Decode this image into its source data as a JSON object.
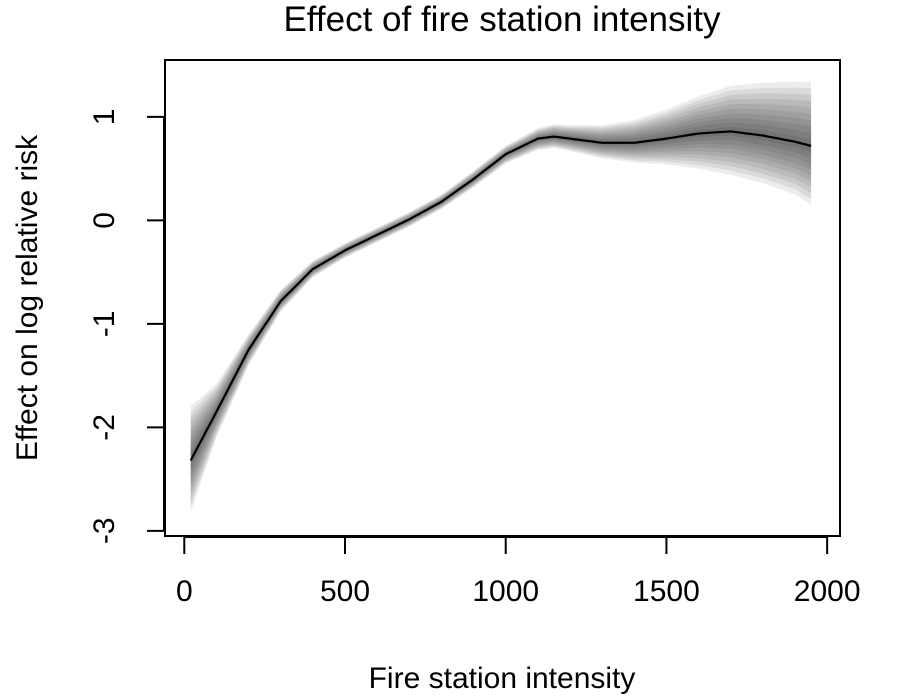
{
  "chart_data": {
    "type": "line",
    "title": "Effect of fire station intensity",
    "xlabel": "Fire station intensity",
    "ylabel": "Effect on log relative risk",
    "xlim": [
      -60,
      2040
    ],
    "ylim": [
      -3.05,
      1.55
    ],
    "x_ticks": [
      0,
      500,
      1000,
      1500,
      2000
    ],
    "y_ticks": [
      -3,
      -2,
      -1,
      0,
      1
    ],
    "y_tick_labels_rotated": true,
    "grid": false,
    "legend": "none",
    "colors": {
      "line": "#000000",
      "band": "#000000",
      "background": "#ffffff"
    },
    "series": [
      {
        "x": [
          20,
          100,
          200,
          300,
          400,
          500,
          600,
          700,
          800,
          900,
          1000,
          1100,
          1150,
          1200,
          1300,
          1400,
          1500,
          1600,
          1700,
          1800,
          1900,
          1950
        ],
        "values": [
          -2.32,
          -1.85,
          -1.25,
          -0.78,
          -0.47,
          -0.29,
          -0.14,
          0.01,
          0.18,
          0.4,
          0.64,
          0.79,
          0.81,
          0.79,
          0.75,
          0.75,
          0.79,
          0.84,
          0.86,
          0.82,
          0.76,
          0.72
        ],
        "lower": [
          -2.82,
          -2.1,
          -1.4,
          -0.88,
          -0.55,
          -0.36,
          -0.21,
          -0.06,
          0.11,
          0.32,
          0.55,
          0.68,
          0.7,
          0.67,
          0.6,
          0.56,
          0.54,
          0.5,
          0.44,
          0.36,
          0.25,
          0.15
        ],
        "upper": [
          -1.8,
          -1.58,
          -1.1,
          -0.67,
          -0.39,
          -0.22,
          -0.07,
          0.08,
          0.25,
          0.48,
          0.72,
          0.89,
          0.93,
          0.92,
          0.92,
          0.97,
          1.07,
          1.2,
          1.3,
          1.33,
          1.34,
          1.34
        ]
      }
    ]
  }
}
